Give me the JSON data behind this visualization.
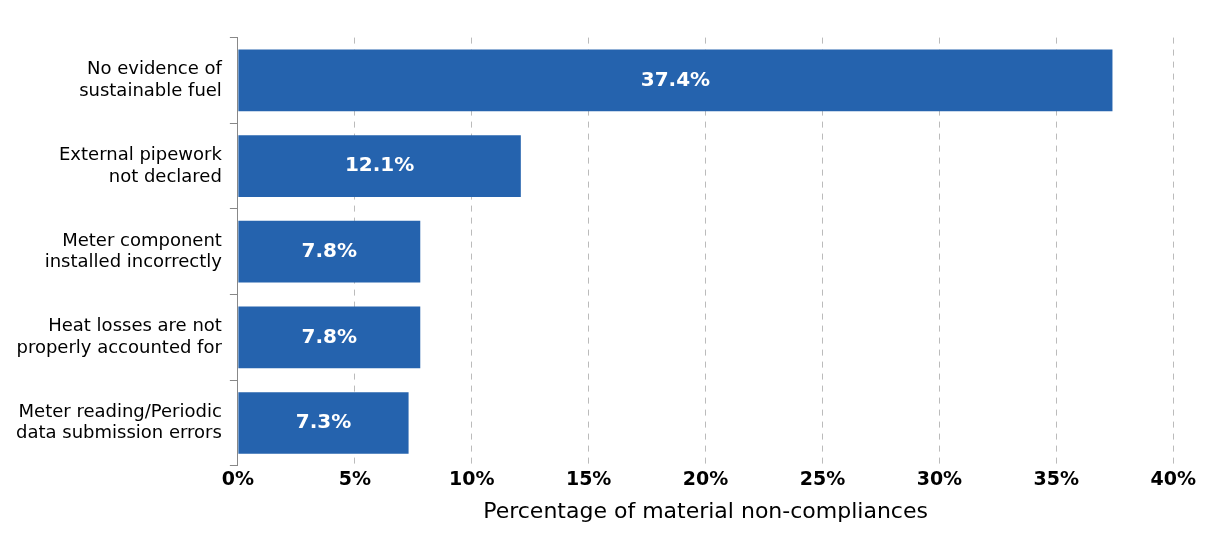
{
  "chart_data": {
    "type": "bar",
    "orientation": "horizontal",
    "xlabel": "Percentage of material non-compliances",
    "categories": [
      "No evidence of sustainable fuel",
      "External pipework not declared",
      "Meter component installed incorrectly",
      "Heat losses are not properly accounted for",
      "Meter reading/Periodic data submission errors"
    ],
    "values": [
      37.4,
      12.1,
      7.8,
      7.8,
      7.3
    ],
    "value_labels": [
      "37.4%",
      "12.1%",
      "7.8%",
      "7.8%",
      "7.3%"
    ],
    "color": "#2563ae",
    "xlim": [
      0,
      40
    ],
    "xticks": [
      {
        "value": 0,
        "label": "0%"
      },
      {
        "value": 5,
        "label": "5%"
      },
      {
        "value": 10,
        "label": "10%"
      },
      {
        "value": 15,
        "label": "15%"
      },
      {
        "value": 20,
        "label": "20%"
      },
      {
        "value": 25,
        "label": "25%"
      },
      {
        "value": 30,
        "label": "30%"
      },
      {
        "value": 35,
        "label": "35%"
      },
      {
        "value": 40,
        "label": "40%"
      }
    ],
    "grid": "x",
    "legend": false
  }
}
